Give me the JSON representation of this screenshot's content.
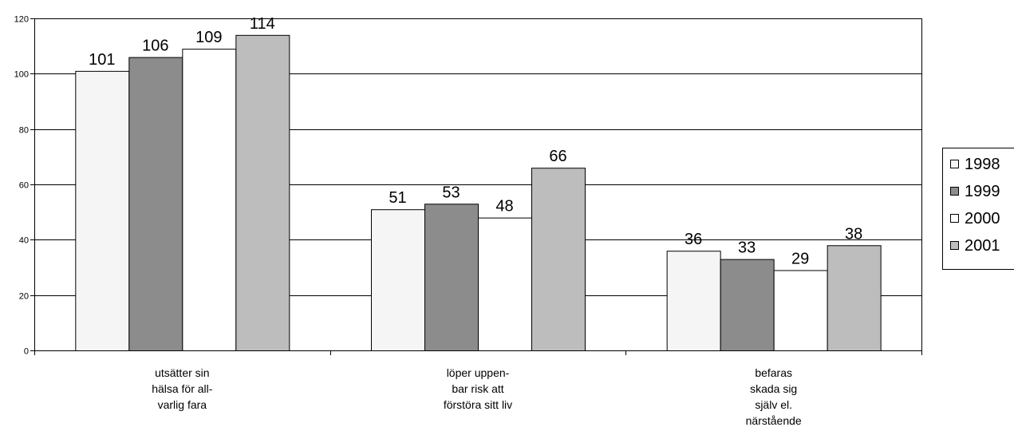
{
  "chart_data": {
    "type": "bar",
    "categories": [
      [
        "utsätter sin",
        "hälsa för all-",
        "varlig fara"
      ],
      [
        "löper uppen-",
        "bar risk att",
        "förstöra sitt liv"
      ],
      [
        "befaras",
        "skada sig",
        "själv el.",
        "närstående"
      ]
    ],
    "series": [
      {
        "name": "1998",
        "values": [
          101,
          51,
          36
        ],
        "color": "#f5f5f5"
      },
      {
        "name": "1999",
        "values": [
          106,
          53,
          33
        ],
        "color": "#8c8c8c"
      },
      {
        "name": "2000",
        "values": [
          109,
          48,
          29
        ],
        "color": "#ffffff"
      },
      {
        "name": "2001",
        "values": [
          114,
          66,
          38
        ],
        "color": "#bdbdbd"
      }
    ],
    "yticks": [
      "0",
      "20",
      "40",
      "60",
      "80",
      "100",
      "120"
    ],
    "ylim": [
      0,
      120
    ],
    "grid": true,
    "legend_position": "right"
  }
}
